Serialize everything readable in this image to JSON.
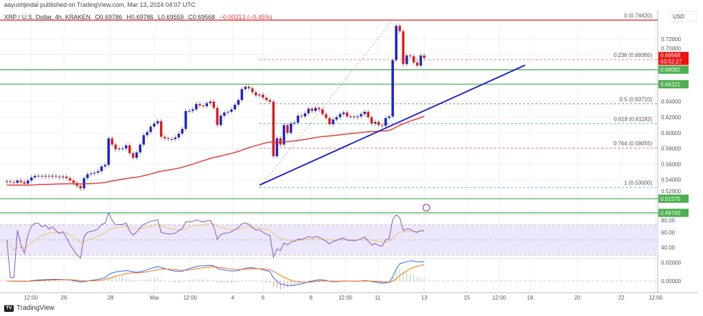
{
  "header": {
    "published": "aayushjindal published on TradingView.com, Mar 13, 2024 04:07 UTC",
    "symbol": "XRP / U.S. Dollar, 4h, KRAKEN",
    "open": "O0.69786",
    "high": "H0.69786",
    "low": "L0.69559",
    "close": "C0.69568",
    "change": "−0.00313 (−0.45%)"
  },
  "price_axis": {
    "currency": "USD",
    "ticks": [
      "0.72000",
      "0.70000",
      "0.64000",
      "0.62000",
      "0.60000",
      "0.58000",
      "0.56000",
      "0.54000",
      "0.52000"
    ],
    "tick_values": [
      0.72,
      0.7,
      0.64,
      0.62,
      0.6,
      0.58,
      0.56,
      0.54,
      0.52
    ],
    "current_price": "0.69568",
    "countdown": "03:52:27"
  },
  "levels": [
    {
      "label": "0.68082",
      "value": 0.68082,
      "color": "#4caf50"
    },
    {
      "label": "0.66221",
      "value": 0.66221,
      "color": "#4caf50"
    },
    {
      "label": "0.51575",
      "value": 0.51575,
      "color": "#4caf50"
    },
    {
      "label": "0.49760",
      "value": 0.4976,
      "color": "#4caf50"
    }
  ],
  "fib_levels": [
    {
      "label": "0 (0.74420)",
      "value": 0.7442,
      "color": "#e53935"
    },
    {
      "label": "0.236 (0.69365)",
      "value": 0.69365,
      "color": "#e57373"
    },
    {
      "label": "0.5 (0.63710)",
      "value": 0.6371,
      "color": "#888888"
    },
    {
      "label": "0.618 (0.61182)",
      "value": 0.61182,
      "color": "#4db6ac"
    },
    {
      "label": "0.764 (0.58055)",
      "value": 0.58055,
      "color": "#e57373"
    },
    {
      "label": "1 (0.53000)",
      "value": 0.53,
      "color": "#64b5f6"
    }
  ],
  "rsi_axis": {
    "ticks": [
      "80.00",
      "60.00",
      "40.00"
    ],
    "values": [
      80,
      60,
      40
    ]
  },
  "macd_axis": {
    "ticks": [
      "0.02000",
      "0.00000"
    ],
    "values": [
      0.02,
      0
    ]
  },
  "time_axis": [
    "12:00",
    "26",
    "28",
    "Mar",
    "12:00",
    "4",
    "6",
    "8",
    "12:00",
    "11",
    "13",
    "15",
    "12:00",
    "18",
    "20",
    "22",
    "12:00"
  ],
  "colors": {
    "up": "#1e24c8",
    "down": "#e01b1b",
    "ema": "#e53935",
    "trendline": "#1e24c8",
    "rsi": "#7e57c2",
    "macd": "#2962ff",
    "signal": "#ff6d00"
  },
  "chart_data": {
    "type": "candlestick",
    "closes": [
      0.538,
      0.537,
      0.536,
      0.539,
      0.537,
      0.535,
      0.539,
      0.543,
      0.545,
      0.545,
      0.544,
      0.545,
      0.544,
      0.545,
      0.544,
      0.543,
      0.544,
      0.542,
      0.539,
      0.536,
      0.532,
      0.529,
      0.542,
      0.547,
      0.548,
      0.549,
      0.551,
      0.557,
      0.559,
      0.593,
      0.585,
      0.579,
      0.58,
      0.58,
      0.584,
      0.574,
      0.568,
      0.575,
      0.585,
      0.597,
      0.601,
      0.608,
      0.612,
      0.615,
      0.595,
      0.593,
      0.592,
      0.592,
      0.594,
      0.599,
      0.605,
      0.628,
      0.628,
      0.63,
      0.637,
      0.635,
      0.634,
      0.638,
      0.64,
      0.632,
      0.61,
      0.622,
      0.626,
      0.627,
      0.63,
      0.636,
      0.642,
      0.656,
      0.659,
      0.657,
      0.652,
      0.648,
      0.649,
      0.645,
      0.642,
      0.64,
      0.57,
      0.593,
      0.585,
      0.61,
      0.6,
      0.612,
      0.613,
      0.622,
      0.621,
      0.625,
      0.631,
      0.628,
      0.632,
      0.63,
      0.624,
      0.619,
      0.611,
      0.617,
      0.62,
      0.624,
      0.626,
      0.621,
      0.621,
      0.62,
      0.621,
      0.624,
      0.627,
      0.62,
      0.612,
      0.614,
      0.61,
      0.609,
      0.619,
      0.621,
      0.693,
      0.737,
      0.73,
      0.688,
      0.699,
      0.698,
      0.69,
      0.686,
      0.699,
      0.69568
    ]
  },
  "footer": {
    "brand": "TradingView"
  }
}
